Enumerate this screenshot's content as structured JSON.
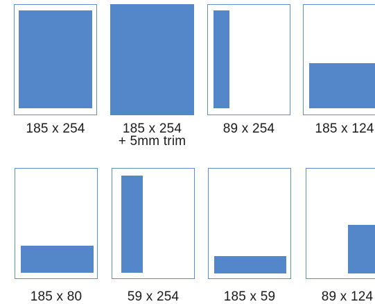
{
  "layouts": [
    {
      "label": "185 x 254"
    },
    {
      "label": "185 x 254",
      "sublabel": "+ 5mm trim"
    },
    {
      "label": "89 x 254"
    },
    {
      "label": "185 x 124"
    },
    {
      "label": "185 x 80"
    },
    {
      "label": "59 x 254"
    },
    {
      "label": "185 x 59"
    },
    {
      "label": "89 x 124"
    }
  ],
  "colors": {
    "fill": "#5387c9",
    "frame_border": "#5b8ccc"
  }
}
